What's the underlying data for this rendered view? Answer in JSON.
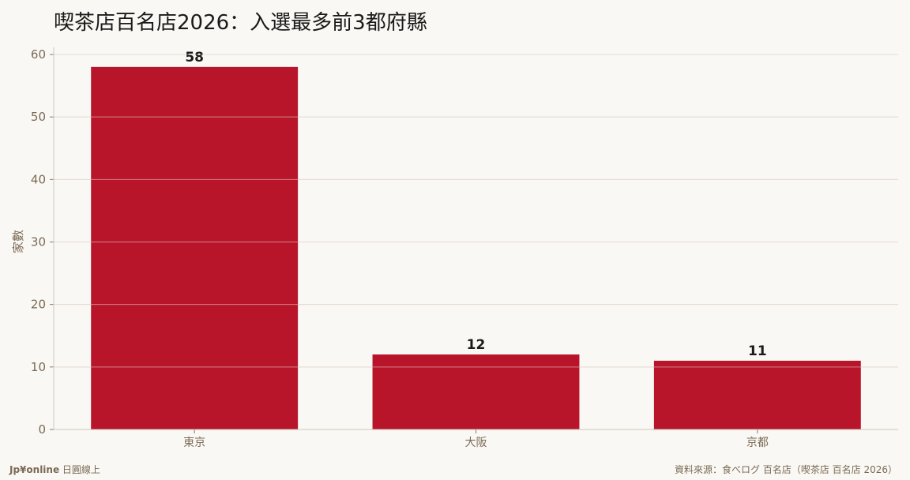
{
  "chart_data": {
    "type": "bar",
    "title": "喫茶店百名店2026：入選最多前3都府縣",
    "categories": [
      "東京",
      "大阪",
      "京都"
    ],
    "values": [
      58,
      12,
      11
    ],
    "xlabel": "",
    "ylabel": "家數",
    "ylim": [
      0,
      60
    ],
    "yticks": [
      0,
      10,
      20,
      30,
      40,
      50,
      60
    ],
    "grid": true,
    "bar_color": "#b8152b"
  },
  "footer": {
    "brand": "Jp¥online",
    "brand_suffix": " 日圓線上",
    "source": "資料來源：食べログ 百名店（喫茶店 百名店 2026）"
  }
}
